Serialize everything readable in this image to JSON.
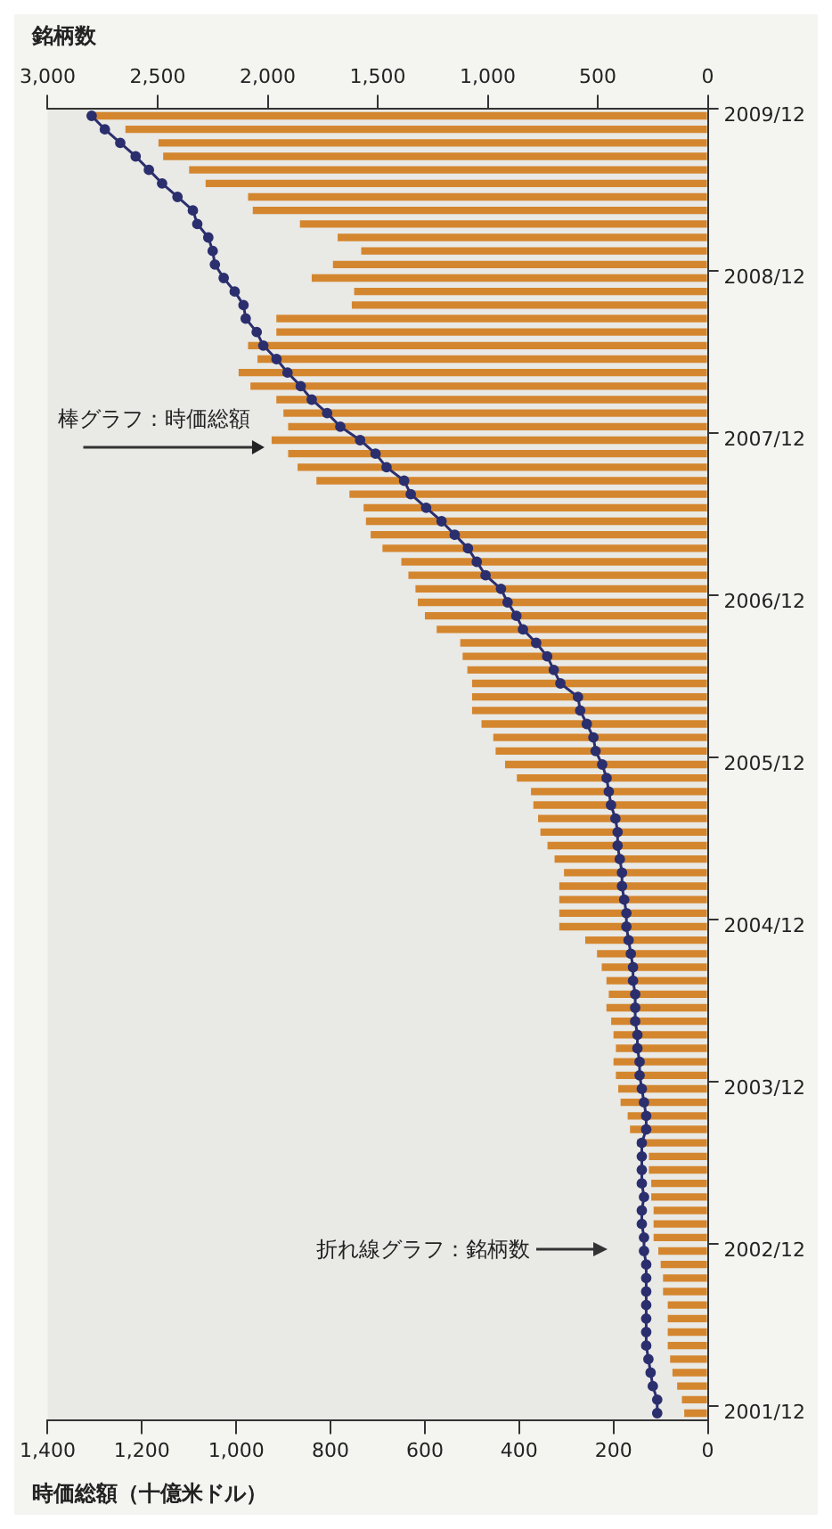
{
  "chart_data": {
    "type": "bar",
    "orientation": "horizontal",
    "xlabel": "時価総額（十億米ドル）",
    "x2label": "銘柄数",
    "categories": [
      "2009/12",
      null,
      null,
      null,
      null,
      null,
      null,
      null,
      null,
      null,
      null,
      null,
      "2008/12",
      null,
      null,
      null,
      null,
      null,
      null,
      null,
      null,
      null,
      null,
      null,
      "2007/12",
      null,
      null,
      null,
      null,
      null,
      null,
      null,
      null,
      null,
      null,
      null,
      "2006/12",
      null,
      null,
      null,
      null,
      null,
      null,
      null,
      null,
      null,
      null,
      null,
      "2005/12",
      null,
      null,
      null,
      null,
      null,
      null,
      null,
      null,
      null,
      null,
      null,
      "2004/12",
      null,
      null,
      null,
      null,
      null,
      null,
      null,
      null,
      null,
      null,
      null,
      "2003/12",
      null,
      null,
      null,
      null,
      null,
      null,
      null,
      null,
      null,
      null,
      null,
      "2002/12",
      null,
      null,
      null,
      null,
      null,
      null,
      null,
      null,
      null,
      null,
      null,
      "2001/12"
    ],
    "series": [
      {
        "color": "#d4862e",
        "values": [
          1300,
          1235,
          1165,
          1155,
          1100,
          1065,
          975,
          965,
          865,
          785,
          735,
          795,
          840,
          750,
          755,
          915,
          915,
          975,
          955,
          995,
          970,
          915,
          900,
          890,
          925,
          890,
          870,
          830,
          760,
          730,
          725,
          715,
          690,
          650,
          635,
          620,
          615,
          600,
          575,
          525,
          520,
          510,
          500,
          500,
          500,
          480,
          455,
          450,
          430,
          405,
          375,
          370,
          360,
          355,
          340,
          325,
          305,
          315,
          315,
          315,
          315,
          260,
          235,
          225,
          215,
          210,
          215,
          205,
          200,
          195,
          200,
          195,
          190,
          185,
          170,
          165,
          150,
          125,
          125,
          120,
          120,
          115,
          115,
          115,
          105,
          100,
          95,
          95,
          85,
          85,
          85,
          85,
          80,
          75,
          65,
          55,
          50
        ]
      },
      {
        "type": "line",
        "axis": "x2",
        "color": "#2b2f6e",
        "marker": "circle",
        "values": [
          2800,
          2740,
          2670,
          2600,
          2540,
          2480,
          2410,
          2340,
          2320,
          2270,
          2250,
          2240,
          2200,
          2150,
          2110,
          2100,
          2050,
          2020,
          1960,
          1910,
          1850,
          1800,
          1730,
          1670,
          1580,
          1510,
          1460,
          1380,
          1350,
          1280,
          1210,
          1150,
          1090,
          1050,
          1010,
          940,
          910,
          870,
          840,
          780,
          730,
          700,
          670,
          590,
          580,
          550,
          520,
          510,
          480,
          460,
          450,
          440,
          420,
          410,
          410,
          400,
          390,
          390,
          380,
          370,
          370,
          360,
          350,
          340,
          340,
          330,
          330,
          330,
          320,
          320,
          310,
          310,
          300,
          290,
          280,
          280,
          300,
          300,
          300,
          300,
          290,
          300,
          300,
          290,
          290,
          280,
          280,
          280,
          280,
          280,
          280,
          280,
          270,
          260,
          250,
          230,
          230
        ]
      }
    ],
    "xlim": [
      1400,
      0
    ],
    "xticks": [
      {
        "value": 1400,
        "label": "1,400"
      },
      {
        "value": 1200,
        "label": "1,200"
      },
      {
        "value": 1000,
        "label": "1,000"
      },
      800,
      600,
      400,
      200,
      0
    ],
    "x2lim": [
      3000,
      0
    ],
    "x2ticks": [
      {
        "value": 3000,
        "label": "3,000"
      },
      {
        "value": 2500,
        "label": "2,500"
      },
      {
        "value": 2000,
        "label": "2,000"
      },
      {
        "value": 1500,
        "label": "1,500"
      },
      {
        "value": 1000,
        "label": "1,000"
      },
      500,
      0
    ],
    "annotations": [
      {
        "text": "棒グラフ：時価総額",
        "x": 925,
        "y": "2007/12"
      },
      "折れ線グラフ：銘柄数"
    ],
    "grid": false,
    "legend": false
  }
}
